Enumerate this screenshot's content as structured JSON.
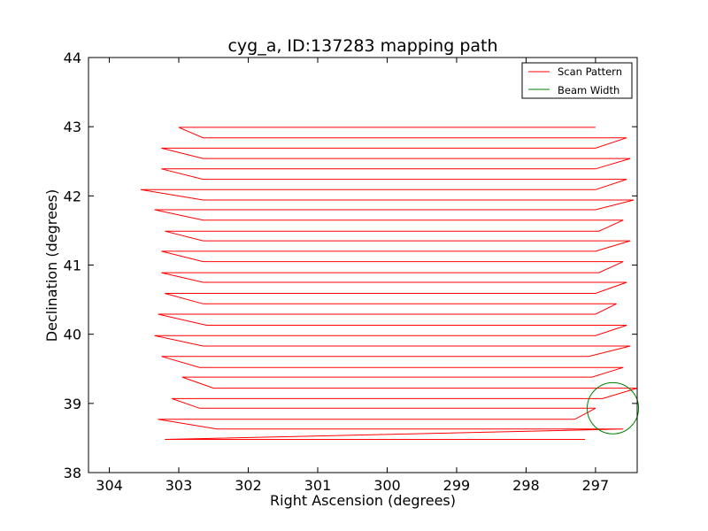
{
  "chart_data": {
    "type": "line",
    "title": "cyg_a, ID:137283 mapping path",
    "xlabel": "Right Ascension (degrees)",
    "ylabel": "Declination (degrees)",
    "xlim": [
      304.3,
      296.4
    ],
    "ylim": [
      38,
      44
    ],
    "x_reversed": true,
    "x_ticks": [
      304,
      303,
      302,
      301,
      300,
      299,
      298,
      297
    ],
    "y_ticks": [
      38,
      39,
      40,
      41,
      42,
      43,
      44
    ],
    "legend_position": "top-right",
    "series": [
      {
        "name": "Scan Pattern",
        "color": "#ff0000",
        "scan_lines": [
          {
            "dec": 38.48,
            "ra_start": 297.15,
            "ra_end": 303.2
          },
          {
            "dec": 38.63,
            "ra_start": 296.6,
            "ra_end": 302.45
          },
          {
            "dec": 38.77,
            "ra_start": 303.3,
            "ra_end": 297.3
          },
          {
            "dec": 38.93,
            "ra_start": 297.0,
            "ra_end": 302.7
          },
          {
            "dec": 39.07,
            "ra_start": 303.1,
            "ra_end": 296.9
          },
          {
            "dec": 39.22,
            "ra_start": 296.4,
            "ra_end": 302.5
          },
          {
            "dec": 39.38,
            "ra_start": 302.95,
            "ra_end": 297.05
          },
          {
            "dec": 39.52,
            "ra_start": 296.6,
            "ra_end": 302.7
          },
          {
            "dec": 39.68,
            "ra_start": 303.25,
            "ra_end": 297.1
          },
          {
            "dec": 39.83,
            "ra_start": 296.5,
            "ra_end": 302.65
          },
          {
            "dec": 39.98,
            "ra_start": 303.35,
            "ra_end": 297.0
          },
          {
            "dec": 40.13,
            "ra_start": 296.55,
            "ra_end": 302.6
          },
          {
            "dec": 40.29,
            "ra_start": 303.3,
            "ra_end": 297.0
          },
          {
            "dec": 40.44,
            "ra_start": 296.7,
            "ra_end": 302.65
          },
          {
            "dec": 40.59,
            "ra_start": 303.2,
            "ra_end": 297.0
          },
          {
            "dec": 40.75,
            "ra_start": 296.55,
            "ra_end": 302.65
          },
          {
            "dec": 40.89,
            "ra_start": 303.25,
            "ra_end": 296.95
          },
          {
            "dec": 41.05,
            "ra_start": 296.6,
            "ra_end": 302.65
          },
          {
            "dec": 41.2,
            "ra_start": 303.25,
            "ra_end": 297.0
          },
          {
            "dec": 41.35,
            "ra_start": 296.5,
            "ra_end": 302.65
          },
          {
            "dec": 41.49,
            "ra_start": 303.2,
            "ra_end": 296.95
          },
          {
            "dec": 41.65,
            "ra_start": 296.6,
            "ra_end": 302.65
          },
          {
            "dec": 41.8,
            "ra_start": 303.35,
            "ra_end": 297.0
          },
          {
            "dec": 41.94,
            "ra_start": 296.45,
            "ra_end": 302.65
          },
          {
            "dec": 42.09,
            "ra_start": 303.55,
            "ra_end": 297.0
          },
          {
            "dec": 42.24,
            "ra_start": 296.55,
            "ra_end": 302.65
          },
          {
            "dec": 42.39,
            "ra_start": 303.25,
            "ra_end": 297.0
          },
          {
            "dec": 42.54,
            "ra_start": 296.5,
            "ra_end": 302.65
          },
          {
            "dec": 42.69,
            "ra_start": 303.25,
            "ra_end": 297.0
          },
          {
            "dec": 42.84,
            "ra_start": 296.55,
            "ra_end": 302.65
          },
          {
            "dec": 42.99,
            "ra_start": 303.0,
            "ra_end": 297.0
          }
        ]
      },
      {
        "name": "Beam Width",
        "color": "#008000",
        "center": [
          296.75,
          38.93
        ],
        "radius_deg": 0.37
      }
    ]
  }
}
